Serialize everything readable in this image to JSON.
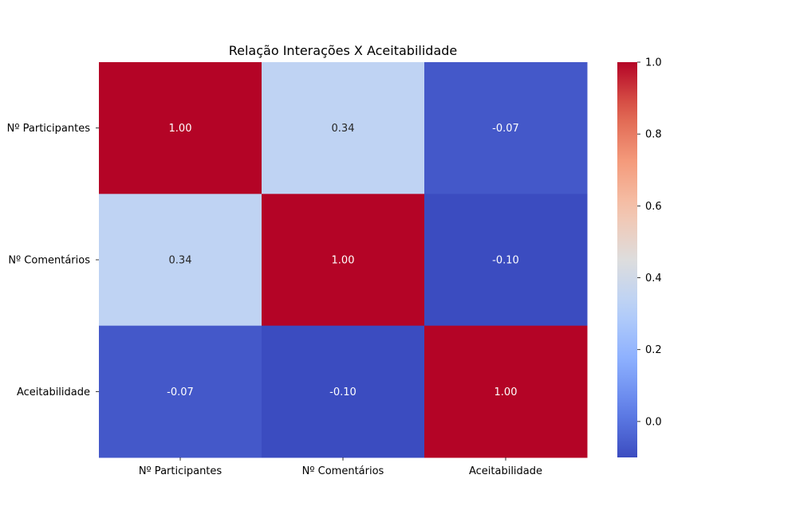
{
  "chart_data": {
    "type": "heatmap",
    "title": "Relação Interações X Aceitabilidade",
    "rows": [
      "Nº Participantes",
      "Nº Comentários",
      "Aceitabilidade"
    ],
    "columns": [
      "Nº Participantes",
      "Nº Comentários",
      "Aceitabilidade"
    ],
    "values": [
      [
        1.0,
        0.34,
        -0.07
      ],
      [
        0.34,
        1.0,
        -0.1
      ],
      [
        -0.07,
        -0.1,
        1.0
      ]
    ],
    "cell_labels": [
      [
        "1.00",
        "0.34",
        "-0.07"
      ],
      [
        "0.34",
        "1.00",
        "-0.10"
      ],
      [
        "-0.07",
        "-0.10",
        "1.00"
      ]
    ],
    "colormap": "coolwarm",
    "colorbar": {
      "vmin": -0.1,
      "vmax": 1.0,
      "ticks": [
        0.0,
        0.2,
        0.4,
        0.6,
        0.8,
        1.0
      ],
      "tick_labels": [
        "0.0",
        "0.2",
        "0.4",
        "0.6",
        "0.8",
        "1.0"
      ]
    },
    "xlabel": "",
    "ylabel": ""
  }
}
